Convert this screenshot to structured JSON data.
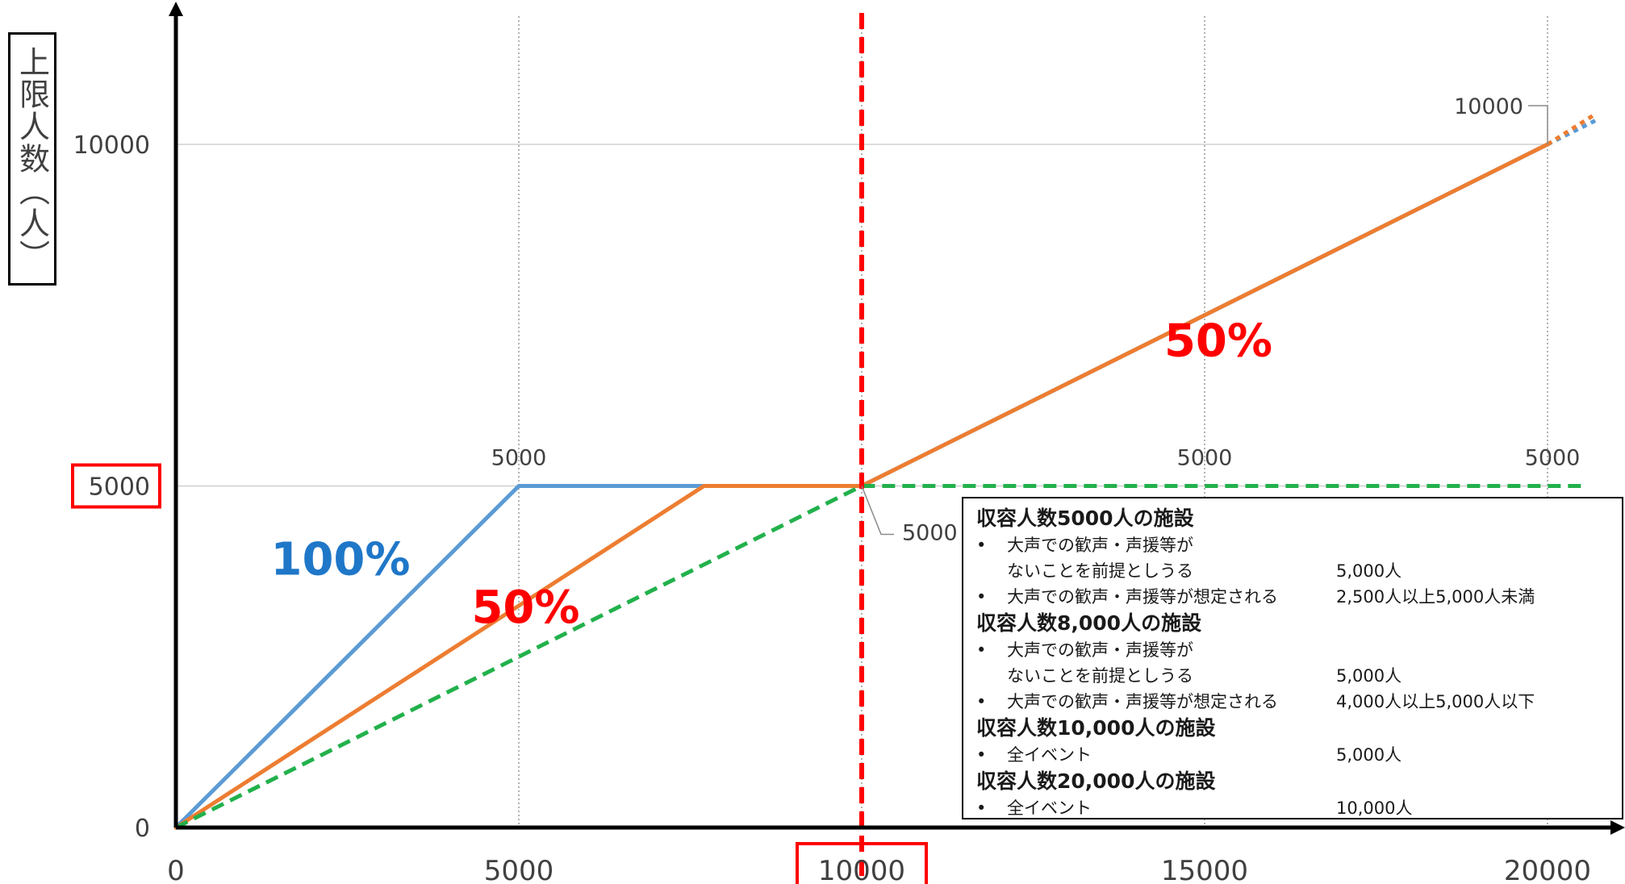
{
  "chart_data": {
    "type": "line",
    "ylabel": "上限人数（人）",
    "xlim": [
      0,
      20000
    ],
    "ylim": [
      0,
      10000
    ],
    "x_ticks": [
      "0",
      "5000",
      "10000",
      "15000",
      "20000"
    ],
    "y_ticks": [
      "0",
      "5000",
      "10000"
    ],
    "highlighted_ticks": {
      "x": "10000",
      "y": "5000"
    },
    "grid": {
      "x": "dotted",
      "y": "solid"
    },
    "series": [
      {
        "color": "#5b9bd5",
        "style": "solid",
        "x": [
          0,
          5000,
          10000,
          20000
        ],
        "y": [
          0,
          5000,
          5000,
          10000
        ]
      },
      {
        "color": "#ed7d31",
        "style": "solid",
        "x": [
          0,
          7700,
          10000,
          20000
        ],
        "y": [
          0,
          5000,
          5000,
          10000
        ]
      },
      {
        "color": "#22b14c",
        "style": "dashed",
        "x": [
          0,
          10000,
          20500
        ],
        "y": [
          0,
          5000,
          5000
        ]
      }
    ],
    "threshold_line": {
      "x": 10000,
      "color": "#ff0000",
      "style": "dashed"
    },
    "point_labels": [
      {
        "text": "5000",
        "x": 5000,
        "y": 5000
      },
      {
        "text": "5000",
        "x": 10000,
        "y": 5000
      },
      {
        "text": "5000",
        "x": 15000,
        "y": 5000
      },
      {
        "text": "5000",
        "x": 20000,
        "y": 5000
      },
      {
        "text": "10000",
        "x": 20000,
        "y": 10000
      }
    ],
    "annotations": [
      {
        "text": "100%",
        "color": "#1f77c8"
      },
      {
        "text": "50%",
        "color": "#ff0000"
      },
      {
        "text": "50%",
        "color": "#ff0000"
      }
    ]
  },
  "info_box": [
    {
      "heading": "収容人数5000人の施設",
      "items": [
        {
          "lines": [
            "大声での歓声・声援等が",
            "ないことを前提としうる"
          ],
          "value": "5,000人"
        },
        {
          "lines": [
            "大声での歓声・声援等が想定される"
          ],
          "value": "2,500人以上5,000人未満"
        }
      ]
    },
    {
      "heading": "収容人数8,000人の施設",
      "items": [
        {
          "lines": [
            "大声での歓声・声援等が",
            "ないことを前提としうる"
          ],
          "value": "5,000人"
        },
        {
          "lines": [
            "大声での歓声・声援等が想定される"
          ],
          "value": "4,000人以上5,000人以下"
        }
      ]
    },
    {
      "heading": "収容人数10,000人の施設",
      "items": [
        {
          "lines": [
            "全イベント"
          ],
          "value": "5,000人"
        }
      ]
    },
    {
      "heading": "収容人数20,000人の施設",
      "items": [
        {
          "lines": [
            "全イベント"
          ],
          "value": "10,000人"
        }
      ]
    }
  ],
  "bullet": "•"
}
